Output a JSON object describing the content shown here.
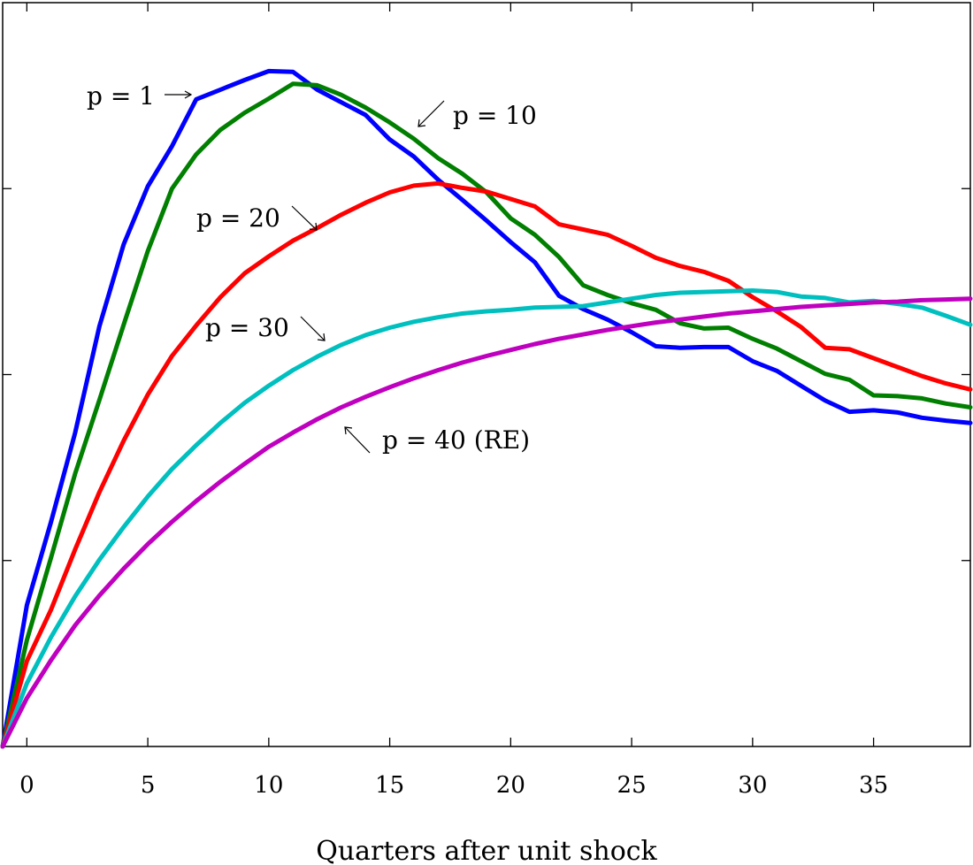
{
  "chart_data": {
    "type": "line",
    "xlabel": "Quarters after unit shock",
    "ylabel": "",
    "xlim": [
      -1,
      39
    ],
    "ylim": [
      0,
      1
    ],
    "x_ticks": [
      0,
      5,
      10,
      15,
      20,
      25,
      30,
      35
    ],
    "x_tick_labels": [
      "0",
      "5",
      "10",
      "15",
      "20",
      "25",
      "30",
      "35"
    ],
    "y_ticks": [
      0.25,
      0.5,
      0.75
    ],
    "y_tick_labels_shown": false,
    "grid": false,
    "legend": "none (inline annotations)",
    "x": [
      -1,
      0,
      1,
      2,
      3,
      4,
      5,
      6,
      7,
      8,
      9,
      10,
      11,
      12,
      13,
      14,
      15,
      16,
      17,
      18,
      19,
      20,
      21,
      22,
      23,
      24,
      25,
      26,
      27,
      28,
      29,
      30,
      31,
      32,
      33,
      34,
      35,
      36,
      37,
      38,
      39
    ],
    "series": [
      {
        "name": "p = 1",
        "color": "#0000ff",
        "values": [
          0,
          0.19,
          0.302,
          0.422,
          0.565,
          0.675,
          0.753,
          0.807,
          0.87,
          0.883,
          0.896,
          0.908,
          0.907,
          0.883,
          0.866,
          0.849,
          0.816,
          0.793,
          0.762,
          0.735,
          0.707,
          0.678,
          0.651,
          0.606,
          0.588,
          0.574,
          0.557,
          0.538,
          0.536,
          0.537,
          0.537,
          0.518,
          0.505,
          0.485,
          0.465,
          0.45,
          0.452,
          0.449,
          0.442,
          0.438,
          0.435
        ]
      },
      {
        "name": "p = 10",
        "color": "#007f00",
        "values": [
          0,
          0.143,
          0.254,
          0.367,
          0.466,
          0.567,
          0.666,
          0.75,
          0.796,
          0.829,
          0.852,
          0.871,
          0.891,
          0.889,
          0.876,
          0.859,
          0.839,
          0.817,
          0.791,
          0.77,
          0.745,
          0.71,
          0.688,
          0.658,
          0.62,
          0.607,
          0.596,
          0.587,
          0.569,
          0.562,
          0.563,
          0.548,
          0.535,
          0.518,
          0.501,
          0.493,
          0.472,
          0.471,
          0.468,
          0.461,
          0.456
        ]
      },
      {
        "name": "p = 20",
        "color": "#ff0000",
        "values": [
          0,
          0.115,
          0.184,
          0.265,
          0.342,
          0.411,
          0.473,
          0.525,
          0.566,
          0.604,
          0.636,
          0.659,
          0.68,
          0.697,
          0.715,
          0.731,
          0.745,
          0.754,
          0.757,
          0.751,
          0.746,
          0.736,
          0.726,
          0.702,
          0.695,
          0.688,
          0.673,
          0.657,
          0.646,
          0.638,
          0.626,
          0.604,
          0.585,
          0.564,
          0.536,
          0.534,
          0.522,
          0.51,
          0.498,
          0.488,
          0.48
        ]
      },
      {
        "name": "p = 30",
        "color": "#00bfbf",
        "values": [
          0,
          0.085,
          0.147,
          0.202,
          0.251,
          0.295,
          0.336,
          0.373,
          0.405,
          0.435,
          0.462,
          0.485,
          0.506,
          0.524,
          0.54,
          0.553,
          0.563,
          0.571,
          0.577,
          0.582,
          0.585,
          0.587,
          0.59,
          0.591,
          0.592,
          0.597,
          0.602,
          0.607,
          0.61,
          0.611,
          0.612,
          0.613,
          0.611,
          0.605,
          0.603,
          0.597,
          0.599,
          0.595,
          0.59,
          0.579,
          0.567
        ]
      },
      {
        "name": "p = 40 (RE)",
        "color": "#bf00bf",
        "values": [
          0,
          0.065,
          0.116,
          0.163,
          0.203,
          0.239,
          0.272,
          0.302,
          0.33,
          0.356,
          0.38,
          0.403,
          0.422,
          0.44,
          0.456,
          0.47,
          0.483,
          0.495,
          0.506,
          0.516,
          0.525,
          0.533,
          0.541,
          0.548,
          0.554,
          0.56,
          0.565,
          0.57,
          0.574,
          0.578,
          0.582,
          0.585,
          0.588,
          0.591,
          0.593,
          0.595,
          0.597,
          0.598,
          0.6,
          0.601,
          0.602
        ]
      }
    ],
    "annotations": [
      {
        "label": "p = 1",
        "arrow": "right",
        "points_to": "p = 1"
      },
      {
        "label": "p = 10",
        "arrow": "down-left",
        "points_to": "p = 10"
      },
      {
        "label": "p = 20",
        "arrow": "down-right",
        "points_to": "p = 20"
      },
      {
        "label": "p = 30",
        "arrow": "down-right",
        "points_to": "p = 30"
      },
      {
        "label": "p = 40 (RE)",
        "arrow": "up-left",
        "points_to": "p = 40 (RE)"
      }
    ]
  }
}
